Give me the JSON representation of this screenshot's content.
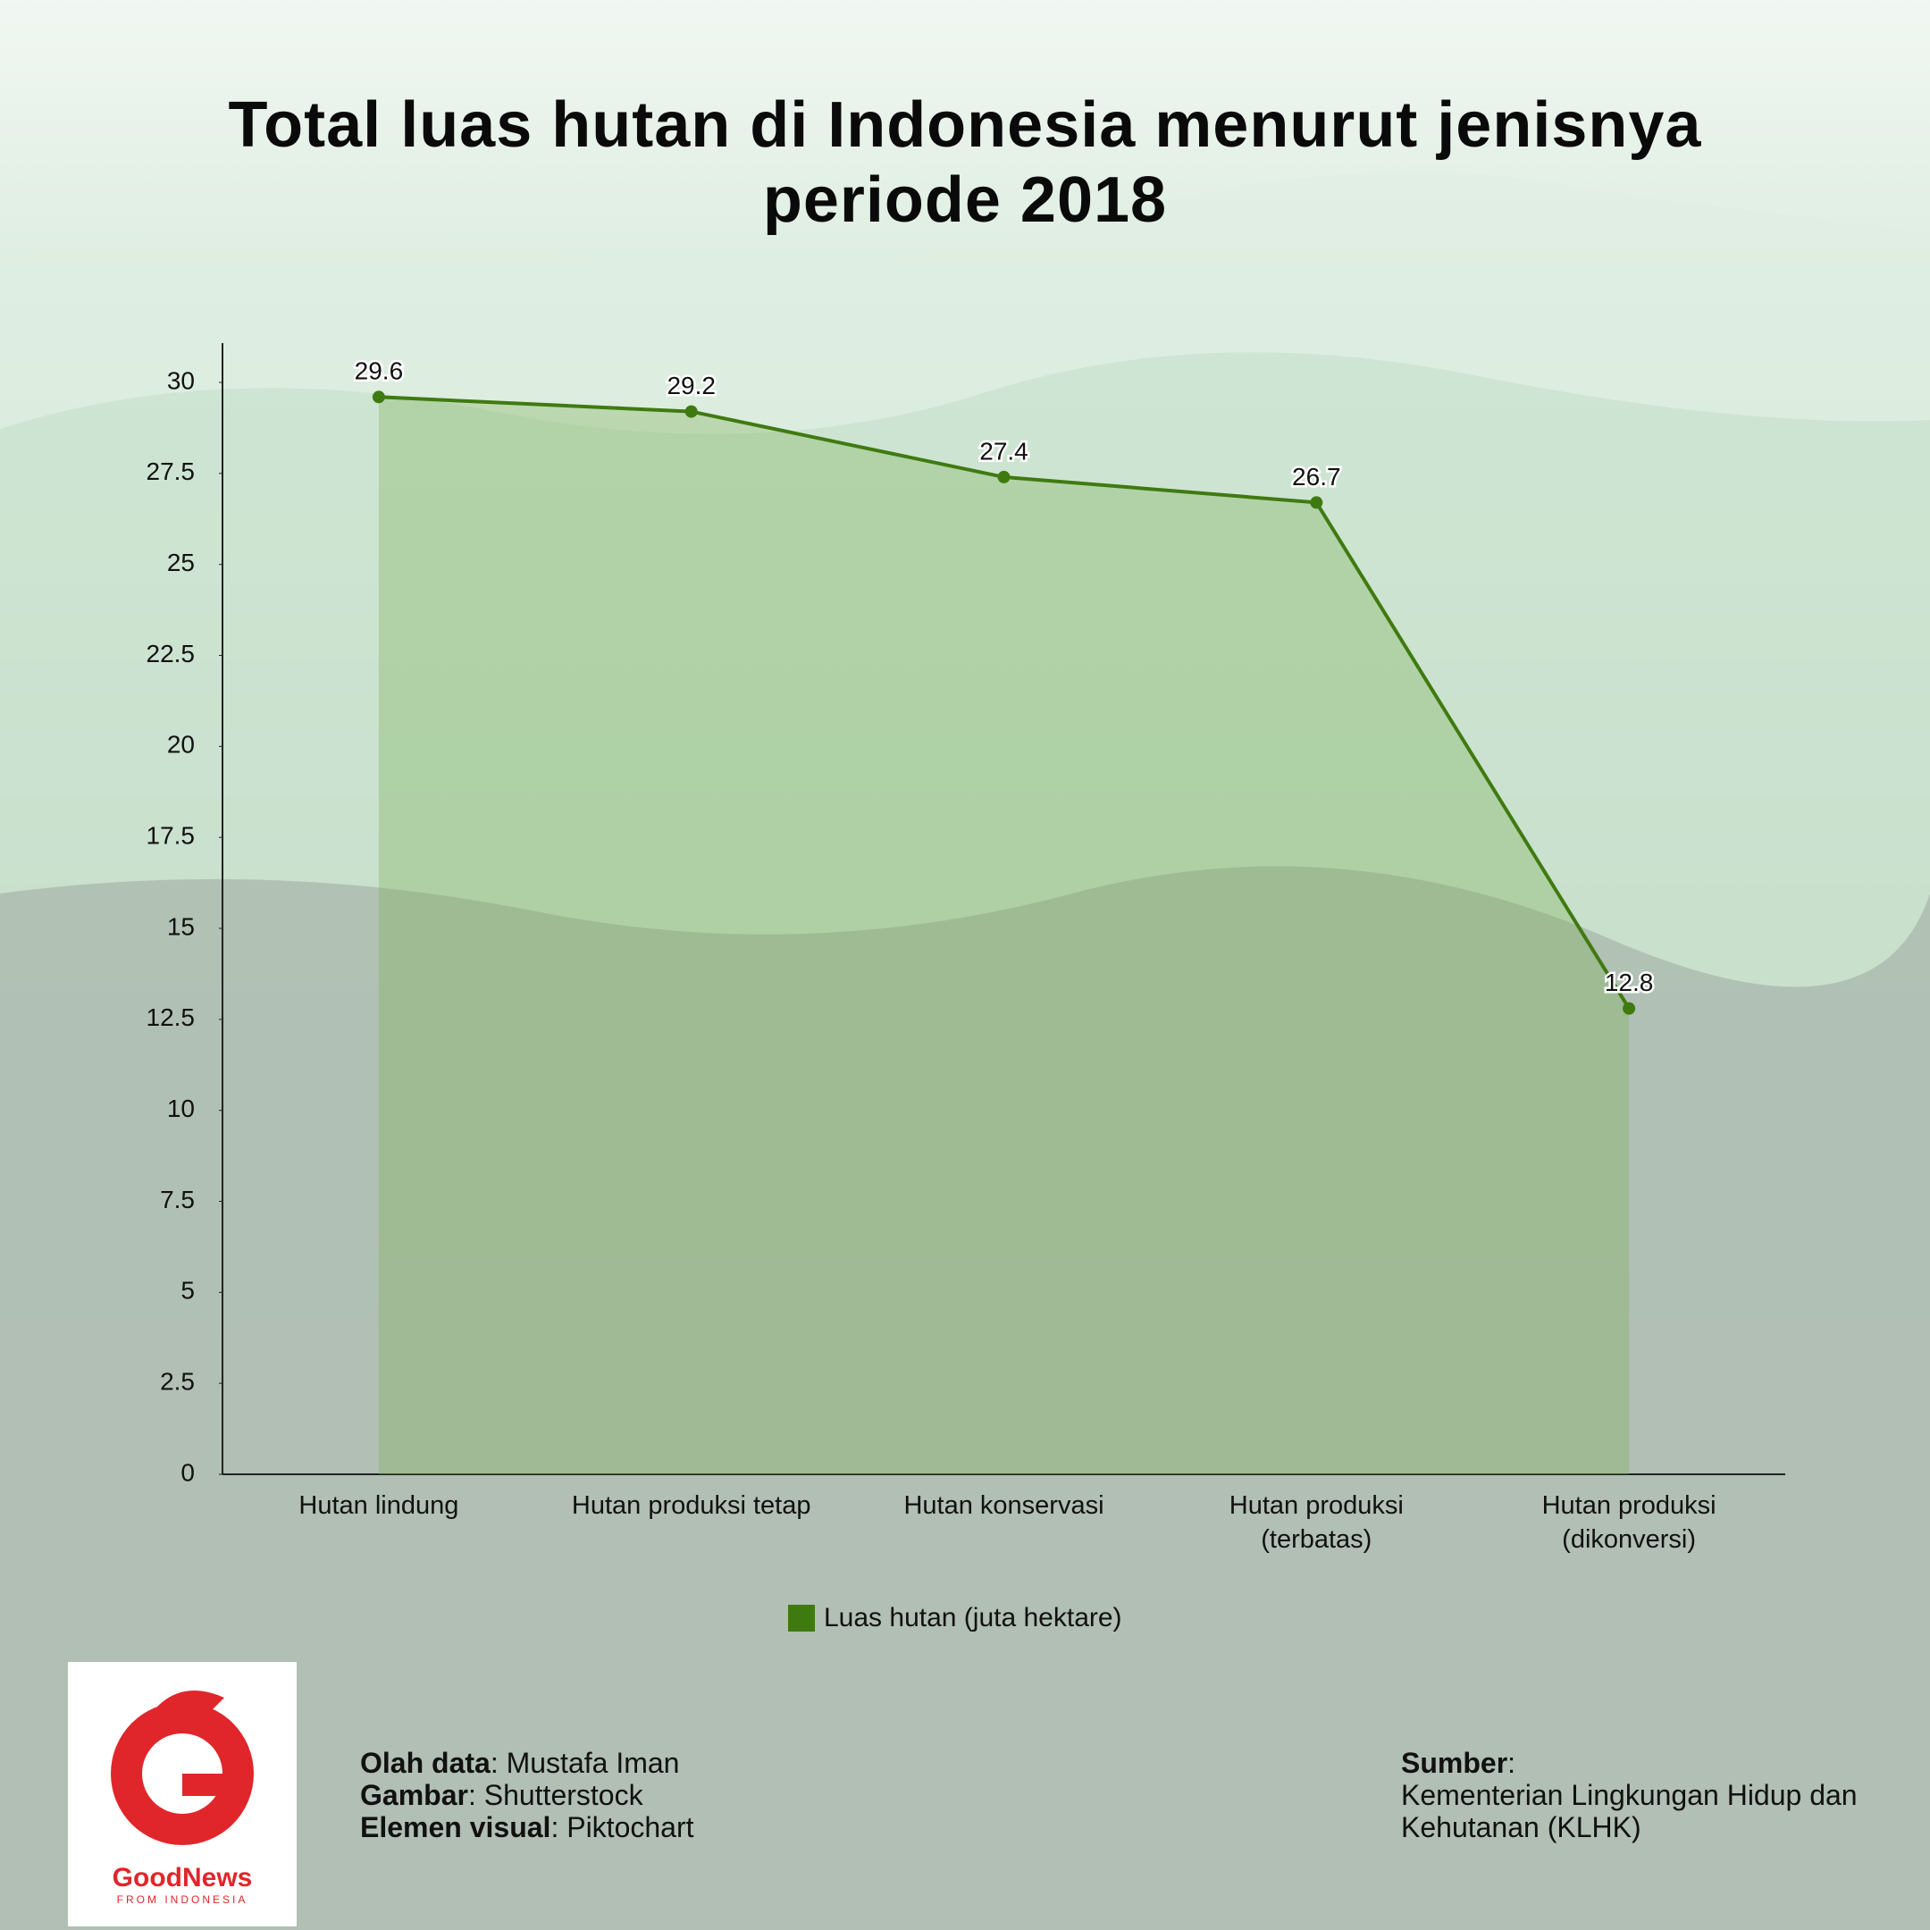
{
  "chart_data": {
    "type": "line",
    "title": "Total luas hutan di Indonesia menurut jenisnya periode 2018",
    "categories": [
      "Hutan lindung",
      "Hutan produksi tetap",
      "Hutan konservasi",
      "Hutan produksi (terbatas)",
      "Hutan produksi (dikonversi)"
    ],
    "series": [
      {
        "name": "Luas hutan (juta hektare)",
        "color": "#3f7a10",
        "values": [
          29.6,
          29.2,
          27.4,
          26.7,
          12.8
        ]
      }
    ],
    "ylim": [
      0,
      30
    ],
    "yticks": [
      0,
      2.5,
      5,
      7.5,
      10,
      12.5,
      15,
      17.5,
      20,
      22.5,
      25,
      27.5,
      30
    ],
    "area_fill": true
  },
  "credits": [
    {
      "label": "Olah data",
      "value": "Mustafa Iman"
    },
    {
      "label": "Gambar",
      "value": "Shutterstock"
    },
    {
      "label": "Elemen visual",
      "value": "Piktochart"
    }
  ],
  "source": {
    "label": "Sumber",
    "value": "Kementerian Lingkungan Hidup dan Kehutanan (KLHK)"
  },
  "logo": {
    "name": "GoodNews",
    "tagline": "FROM INDONESIA"
  }
}
